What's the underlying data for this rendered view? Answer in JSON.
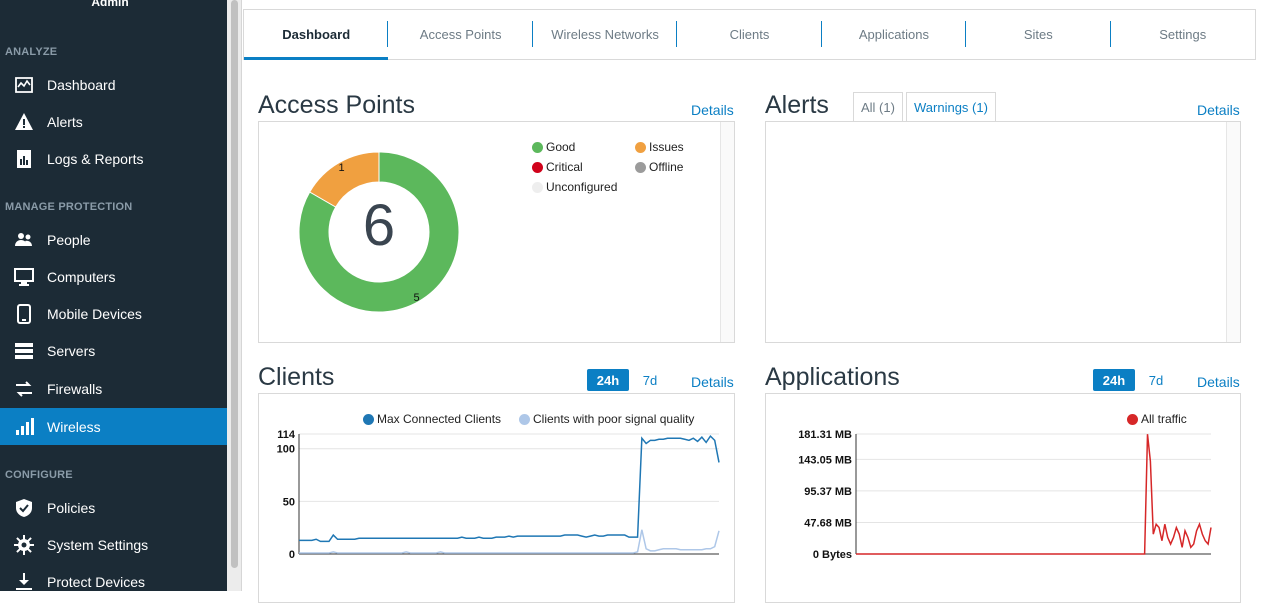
{
  "sidebar": {
    "user_label": "Admin",
    "sections": [
      {
        "title": "ANALYZE",
        "items": [
          {
            "label": "Dashboard",
            "icon": "dashboard-icon"
          },
          {
            "label": "Alerts",
            "icon": "alert-triangle-icon"
          },
          {
            "label": "Logs & Reports",
            "icon": "reports-icon"
          }
        ]
      },
      {
        "title": "MANAGE PROTECTION",
        "items": [
          {
            "label": "People",
            "icon": "people-icon"
          },
          {
            "label": "Computers",
            "icon": "monitor-icon"
          },
          {
            "label": "Mobile Devices",
            "icon": "mobile-icon"
          },
          {
            "label": "Servers",
            "icon": "server-icon"
          },
          {
            "label": "Firewalls",
            "icon": "firewall-arrows-icon"
          },
          {
            "label": "Wireless",
            "icon": "wireless-bars-icon",
            "active": true
          }
        ]
      },
      {
        "title": "CONFIGURE",
        "items": [
          {
            "label": "Policies",
            "icon": "shield-check-icon"
          },
          {
            "label": "System Settings",
            "icon": "gear-icon"
          },
          {
            "label": "Protect Devices",
            "icon": "download-icon"
          }
        ]
      }
    ]
  },
  "tabs": [
    "Dashboard",
    "Access Points",
    "Wireless Networks",
    "Clients",
    "Applications",
    "Sites",
    "Settings"
  ],
  "active_tab": "Dashboard",
  "access_points": {
    "title": "Access Points",
    "details_label": "Details",
    "total": "6",
    "legend": [
      {
        "label": "Good",
        "color": "#5cb85c"
      },
      {
        "label": "Issues",
        "color": "#f0a040"
      },
      {
        "label": "Critical",
        "color": "#d0021b"
      },
      {
        "label": "Offline",
        "color": "#9b9b9b"
      },
      {
        "label": "Unconfigured",
        "color": "#eeeeee"
      }
    ]
  },
  "alerts": {
    "title": "Alerts",
    "details_label": "Details",
    "tab_all": "All (1)",
    "tab_warnings": "Warnings (1)"
  },
  "clients": {
    "title": "Clients",
    "range_24h": "24h",
    "range_7d": "7d",
    "details_label": "Details"
  },
  "applications": {
    "title": "Applications",
    "range_24h": "24h",
    "range_7d": "7d",
    "details_label": "Details"
  },
  "chart_data": [
    {
      "type": "pie",
      "subtype": "donut",
      "center_label": "6",
      "slices": [
        {
          "name": "Good",
          "value": 5,
          "color": "#5cb85c"
        },
        {
          "name": "Issues",
          "value": 1,
          "color": "#f0a040"
        }
      ]
    },
    {
      "type": "line",
      "ytick_labels": [
        "114",
        "100",
        "50",
        "0"
      ],
      "yticks": [
        114,
        100,
        50,
        0
      ],
      "ylim": [
        0,
        114
      ],
      "legend_position": "top",
      "grid": true,
      "series": [
        {
          "name": "Max Connected Clients",
          "color": "#1f77b4",
          "values": [
            13,
            13,
            13,
            13,
            14,
            12,
            12,
            12,
            18,
            14,
            14,
            14,
            14,
            14,
            15,
            15,
            15,
            15,
            15,
            15,
            15,
            15,
            15,
            15,
            15,
            15,
            15,
            15,
            15,
            15,
            15,
            15,
            15,
            15,
            15,
            15,
            15,
            15,
            16,
            15,
            15,
            15,
            16,
            15,
            15,
            15,
            16,
            16,
            16,
            17,
            16,
            17,
            17,
            17,
            17,
            17,
            17,
            17,
            17,
            17,
            17,
            17,
            18,
            18,
            18,
            18,
            17,
            16,
            17,
            18,
            17,
            17,
            18,
            18,
            18,
            18,
            18,
            16,
            16,
            16,
            110,
            105,
            108,
            108,
            109,
            109,
            110,
            110,
            110,
            110,
            109,
            108,
            110,
            107,
            111,
            106,
            112,
            108,
            87
          ]
        },
        {
          "name": "Clients with poor signal quality",
          "color": "#aec7e8",
          "values": [
            1,
            1,
            1,
            1,
            1,
            1,
            1,
            1,
            2,
            1,
            1,
            1,
            1,
            1,
            1,
            1,
            1,
            1,
            1,
            1,
            1,
            1,
            1,
            1,
            1,
            2,
            1,
            1,
            1,
            1,
            1,
            1,
            1,
            2,
            1,
            1,
            1,
            1,
            1,
            1,
            1,
            1,
            1,
            1,
            1,
            1,
            1,
            1,
            1,
            1,
            1,
            1,
            1,
            1,
            1,
            1,
            1,
            1,
            1,
            1,
            1,
            1,
            1,
            1,
            1,
            1,
            1,
            1,
            1,
            1,
            1,
            1,
            1,
            1,
            1,
            1,
            1,
            1,
            1,
            2,
            23,
            5,
            3,
            3,
            4,
            5,
            5,
            5,
            5,
            4,
            4,
            4,
            4,
            4,
            4,
            5,
            5,
            7,
            22
          ]
        }
      ]
    },
    {
      "type": "line",
      "ytick_labels": [
        "181.31 MB",
        "143.05 MB",
        "95.37 MB",
        "47.68 MB",
        "0 Bytes"
      ],
      "yticks": [
        181.31,
        143.05,
        95.37,
        47.68,
        0
      ],
      "ylim": [
        0,
        181.31
      ],
      "legend_position": "top",
      "grid": true,
      "series": [
        {
          "name": "All traffic",
          "color": "#d62728",
          "values": [
            0,
            0,
            0,
            0,
            0,
            0,
            0,
            0,
            0,
            0,
            0,
            0,
            0,
            0,
            0,
            0,
            0,
            0,
            0,
            0,
            0,
            0,
            0,
            0,
            0,
            0,
            0,
            0,
            0,
            0,
            0,
            0,
            0,
            0,
            0,
            0,
            0,
            0,
            0,
            0,
            0,
            0,
            0,
            0,
            0,
            0,
            0,
            0,
            0,
            0,
            0,
            0,
            0,
            0,
            0,
            0,
            0,
            0,
            0,
            0,
            0,
            0,
            0,
            0,
            0,
            0,
            0,
            0,
            0,
            0,
            0,
            0,
            0,
            0,
            0,
            0,
            0,
            0,
            0,
            0,
            0,
            0,
            0,
            0,
            0,
            0,
            0,
            0,
            0,
            0,
            0,
            0,
            0,
            0,
            0,
            0,
            0,
            0,
            0,
            0,
            0,
            181,
            140,
            30,
            45,
            40,
            20,
            45,
            25,
            15,
            25,
            40,
            30,
            10,
            35,
            25,
            10,
            15,
            35,
            45,
            30,
            20,
            15,
            40
          ]
        }
      ]
    }
  ]
}
